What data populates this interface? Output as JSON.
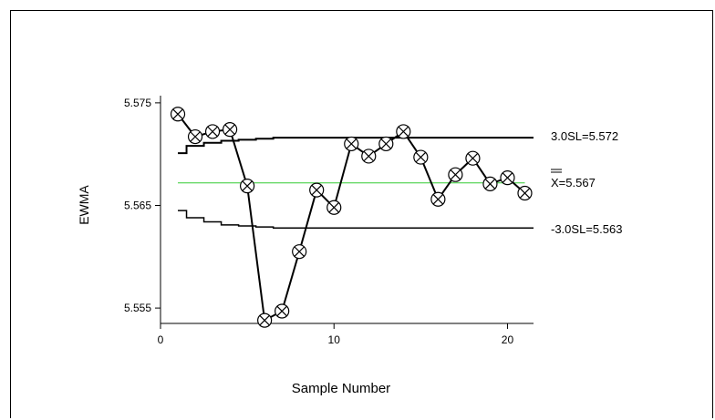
{
  "chart_data": {
    "type": "line",
    "title": "",
    "xlabel": "Sample Number",
    "ylabel": "EWMA",
    "xlim": [
      0,
      21.5
    ],
    "ylim": [
      5.5535,
      5.5757
    ],
    "xticks": [
      0,
      10,
      20
    ],
    "xtick_labels": [
      "0",
      "10",
      "20"
    ],
    "yticks": [
      5.555,
      5.565,
      5.575
    ],
    "ytick_labels": [
      "5.555",
      "5.565",
      "5.575"
    ],
    "grid": false,
    "legend": "none",
    "x": [
      1,
      2,
      3,
      4,
      5,
      6,
      7,
      8,
      9,
      10,
      11,
      12,
      13,
      14,
      15,
      16,
      17,
      18,
      19,
      20,
      21
    ],
    "series": [
      {
        "values": [
          5.5739,
          5.5717,
          5.5722,
          5.5724,
          5.5669,
          5.5538,
          5.5547,
          5.5605,
          5.5665,
          5.5648,
          5.571,
          5.5698,
          5.571,
          5.5722,
          5.5697,
          5.5656,
          5.568,
          5.5696,
          5.5671,
          5.5677,
          5.5662
        ],
        "marker": "circled-x",
        "color": "#000000"
      }
    ],
    "center_line": {
      "value": 5.5672,
      "label": "X=5.567",
      "color": "#33cc33"
    },
    "ucl": {
      "label": "3.0SL=5.572",
      "steps": [
        5.5701,
        5.5708,
        5.5711,
        5.5713,
        5.5714,
        5.5715,
        5.5716,
        5.5716,
        5.5716,
        5.5716,
        5.5716,
        5.5716,
        5.5716,
        5.5716,
        5.5716,
        5.5716,
        5.5716,
        5.5716,
        5.5716,
        5.5716,
        5.5716
      ]
    },
    "lcl": {
      "label": "-3.0SL=5.563",
      "steps": [
        5.5645,
        5.5638,
        5.5634,
        5.5631,
        5.563,
        5.5629,
        5.5628,
        5.5628,
        5.5628,
        5.5628,
        5.5628,
        5.5628,
        5.5628,
        5.5628,
        5.5628,
        5.5628,
        5.5628,
        5.5628,
        5.5628,
        5.5628,
        5.5628
      ]
    }
  }
}
